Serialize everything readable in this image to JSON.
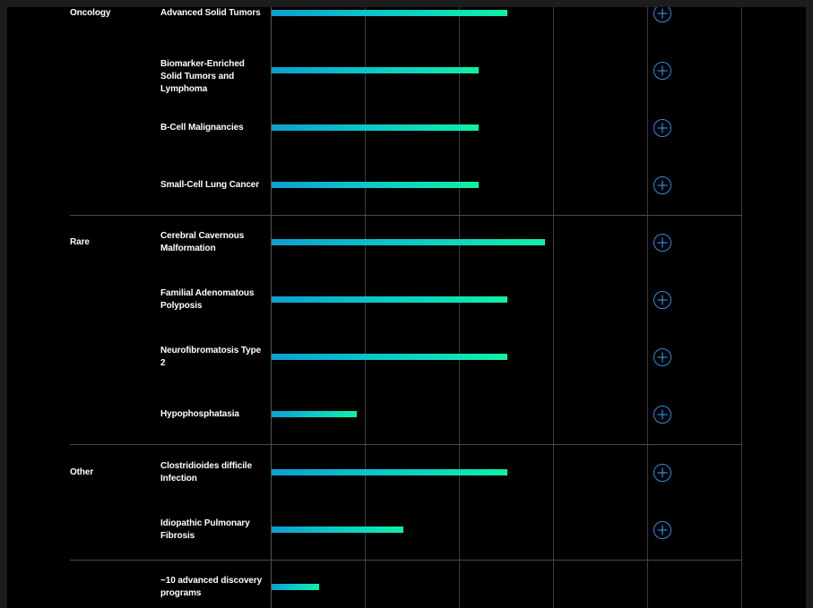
{
  "categories": [
    {
      "label": "Oncology",
      "start_row": 0
    },
    {
      "label": "Rare",
      "start_row": 4
    },
    {
      "label": "Other",
      "start_row": 8
    }
  ],
  "programs": [
    {
      "label": "Advanced Solid Tumors",
      "progress": 0.5,
      "expandable": true
    },
    {
      "label": "Biomarker-Enriched Solid Tumors and Lymphoma",
      "progress": 0.44,
      "expandable": true
    },
    {
      "label": "B-Cell Malignancies",
      "progress": 0.44,
      "expandable": true
    },
    {
      "label": "Small-Cell Lung Cancer",
      "progress": 0.44,
      "expandable": true
    },
    {
      "label": "Cerebral Cavernous Malformation",
      "progress": 0.58,
      "expandable": true
    },
    {
      "label": "Familial Adenomatous Polyposis",
      "progress": 0.5,
      "expandable": true
    },
    {
      "label": "Neurofibromatosis Type 2",
      "progress": 0.5,
      "expandable": true
    },
    {
      "label": "Hypophosphatasia",
      "progress": 0.18,
      "expandable": true
    },
    {
      "label": "Clostridioides difficile Infection",
      "progress": 0.5,
      "expandable": true
    },
    {
      "label": "Idiopathic Pulmonary Fibrosis",
      "progress": 0.28,
      "expandable": true
    },
    {
      "label": "~10 advanced discovery programs",
      "progress": 0.1,
      "expandable": false
    }
  ],
  "colors": {
    "background": "#000000",
    "bar_start": "#0d9fd0",
    "bar_end": "#0ff0a8",
    "expand_icon": "#2b8fe0"
  },
  "icons": {
    "expand": "plus-circle-icon"
  }
}
